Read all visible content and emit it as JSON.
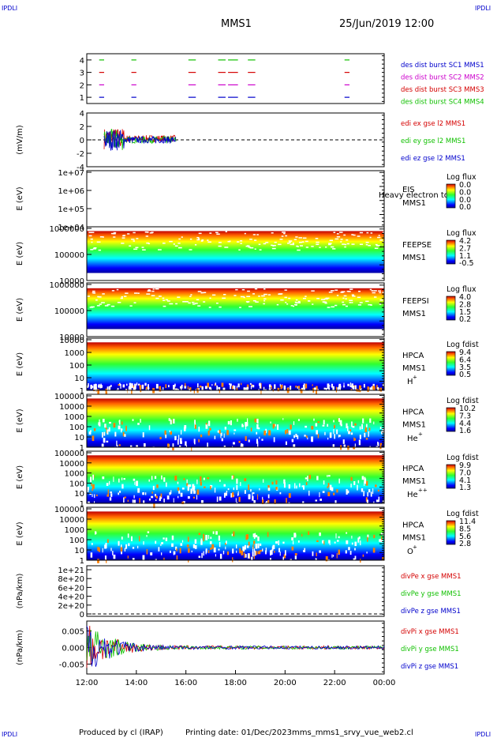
{
  "corner_labels": {
    "tl": "IPDLI",
    "tr": "IPDLI",
    "bl": "IPDLI",
    "br": "IPDLI"
  },
  "header": {
    "mission": "MMS1",
    "date": "25/Jun/2019 12:00"
  },
  "footer": {
    "produced": "Produced by cl (IRAP)",
    "printing": "Printing date: 01/Dec/2023",
    "file": "mms_mms1_srvy_vue_web2.cl"
  },
  "colors": {
    "red": "#d40000",
    "green": "#10c000",
    "blue": "#0000cc",
    "magenta": "#cc00cc"
  },
  "chart_data": [
    {
      "type": "line",
      "id": "burst",
      "yticks": [
        "1",
        "2",
        "3",
        "4"
      ],
      "ylim": [
        0.5,
        4.5
      ],
      "legend": [
        {
          "text": "des dist burst SC1 MMS1",
          "color": "#0000cc"
        },
        {
          "text": "des dist burst SC2 MMS2",
          "color": "#cc00cc"
        },
        {
          "text": "des dist burst SC3 MMS3",
          "color": "#d40000"
        },
        {
          "text": "des dist burst SC4 MMS4",
          "color": "#10c000"
        }
      ],
      "segments_hours": [
        [
          12.5,
          12.7
        ],
        [
          13.8,
          14.0
        ],
        [
          16.1,
          16.4
        ],
        [
          17.3,
          17.6
        ],
        [
          17.7,
          18.1
        ],
        [
          18.5,
          18.8
        ],
        [
          22.4,
          22.6
        ]
      ]
    },
    {
      "type": "line",
      "id": "edi",
      "ylabel": "(mV/m)",
      "yticks": [
        "-4",
        "-2",
        "0",
        "2",
        "4"
      ],
      "ylim": [
        -4,
        4
      ],
      "legend": [
        {
          "text": "edi ex gse l2 MMS1",
          "color": "#d40000"
        },
        {
          "text": "edi ey gse l2 MMS1",
          "color": "#10c000"
        },
        {
          "text": "edi ez gse l2 MMS1",
          "color": "#0000cc"
        }
      ],
      "data_range_hours": [
        12.7,
        15.6
      ]
    },
    {
      "type": "heatmap",
      "id": "eis",
      "ylabel": "E (eV)",
      "yticks": [
        "1e+04",
        "1e+05",
        "1e+06",
        "1e+07"
      ],
      "side": [
        "EIS",
        "MMS1"
      ],
      "overflow_text": "Heavy electron to",
      "cbar_title": "Log flux",
      "cbar_ticks": [
        "0.0",
        "0.0",
        "0.0",
        "0.0"
      ]
    },
    {
      "type": "heatmap",
      "id": "feepse",
      "ylabel": "E (eV)",
      "yticks": [
        "10000",
        "100000",
        "1000000"
      ],
      "side": [
        "FEEPSE",
        "MMS1"
      ],
      "cbar_title": "Log flux",
      "cbar_ticks": [
        "4.2",
        "2.7",
        "1.1",
        "-0.5"
      ]
    },
    {
      "type": "heatmap",
      "id": "feepsi",
      "ylabel": "E (eV)",
      "yticks": [
        "10000",
        "100000",
        "1000000"
      ],
      "side": [
        "FEEPSI",
        "MMS1"
      ],
      "cbar_title": "Log flux",
      "cbar_ticks": [
        "4.0",
        "2.8",
        "1.5",
        "0.2"
      ]
    },
    {
      "type": "heatmap",
      "id": "hpca_h",
      "ylabel": "E (eV)",
      "yticks": [
        "1",
        "10",
        "100",
        "1000",
        "10000"
      ],
      "side": [
        "HPCA",
        "MMS1"
      ],
      "species": "H",
      "charge": "+",
      "cbar_title": "Log fdist",
      "cbar_ticks": [
        "9.4",
        "6.4",
        "3.5",
        "0.5"
      ]
    },
    {
      "type": "heatmap",
      "id": "hpca_he",
      "ylabel": "E (eV)",
      "yticks": [
        "1",
        "10",
        "100",
        "1000",
        "10000",
        "100000"
      ],
      "side": [
        "HPCA",
        "MMS1"
      ],
      "species": "He",
      "charge": "+",
      "cbar_title": "Log fdist",
      "cbar_ticks": [
        "10.2",
        "7.3",
        "4.4",
        "1.6"
      ]
    },
    {
      "type": "heatmap",
      "id": "hpca_hepp",
      "ylabel": "E (eV)",
      "yticks": [
        "1",
        "10",
        "100",
        "1000",
        "10000",
        "100000"
      ],
      "side": [
        "HPCA",
        "MMS1"
      ],
      "species": "He",
      "charge": "++",
      "cbar_title": "Log fdist",
      "cbar_ticks": [
        "9.9",
        "7.0",
        "4.1",
        "1.3"
      ]
    },
    {
      "type": "heatmap",
      "id": "hpca_o",
      "ylabel": "E (eV)",
      "yticks": [
        "1",
        "10",
        "100",
        "1000",
        "10000",
        "100000"
      ],
      "side": [
        "HPCA",
        "MMS1"
      ],
      "species": "O",
      "charge": "+",
      "cbar_title": "Log fdist",
      "cbar_ticks": [
        "11.4",
        "8.5",
        "5.6",
        "2.8"
      ]
    },
    {
      "type": "line",
      "id": "divpe",
      "ylabel": "(nPa/km)",
      "yticks": [
        "0",
        "2e+20",
        "4e+20",
        "6e+20",
        "8e+20",
        "1e+21"
      ],
      "ylim": [
        0,
        1e+21
      ],
      "legend": [
        {
          "text": "divPe x gse MMS1",
          "color": "#d40000"
        },
        {
          "text": "divPe y gse MMS1",
          "color": "#10c000"
        },
        {
          "text": "divPe z gse MMS1",
          "color": "#0000cc"
        }
      ]
    },
    {
      "type": "line",
      "id": "divpi",
      "ylabel": "(nPa/km)",
      "yticks": [
        "-0.005",
        "0.000",
        "0.005"
      ],
      "ylim": [
        -0.008,
        0.008
      ],
      "legend": [
        {
          "text": "divPi x gse MMS1",
          "color": "#d40000"
        },
        {
          "text": "divPi y gse MMS1",
          "color": "#10c000"
        },
        {
          "text": "divPi z gse MMS1",
          "color": "#0000cc"
        }
      ]
    }
  ],
  "xaxis": {
    "ticks": [
      "12:00",
      "14:00",
      "16:00",
      "18:00",
      "20:00",
      "22:00",
      "00:00"
    ],
    "range_hours": [
      12,
      24
    ]
  }
}
